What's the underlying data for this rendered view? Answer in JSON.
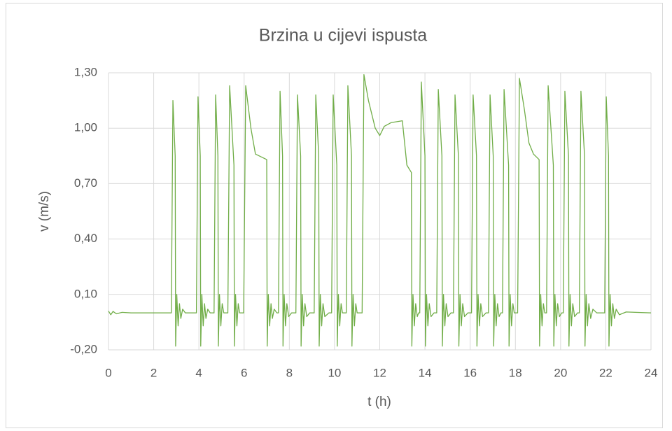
{
  "chart_data": {
    "type": "line",
    "title": "Brzina u cijevi ispusta",
    "x_label": "t  (h)",
    "y_label": "v  (m/s)",
    "x": [
      0,
      0.1,
      0.2,
      0.35,
      0.6,
      1,
      2.78,
      2.85,
      2.95,
      2.97,
      3.02,
      3.08,
      3.14,
      3.2,
      3.28,
      3.4,
      3.89,
      3.96,
      4.06,
      4.08,
      4.13,
      4.19,
      4.25,
      4.31,
      4.39,
      4.5,
      4.67,
      4.74,
      4.84,
      4.86,
      4.91,
      4.97,
      5.03,
      5.1,
      5.28,
      5.36,
      5.55,
      5.57,
      5.62,
      5.68,
      5.74,
      5.8,
      5.98,
      6.07,
      6.3,
      6.5,
      7.0,
      7.02,
      7.07,
      7.13,
      7.19,
      7.25,
      7.33,
      7.45,
      7.52,
      7.59,
      7.7,
      7.72,
      7.77,
      7.83,
      7.89,
      7.97,
      8.1,
      8.29,
      8.36,
      8.5,
      8.52,
      8.57,
      8.63,
      8.69,
      8.77,
      8.9,
      9.1,
      9.17,
      9.3,
      9.32,
      9.37,
      9.43,
      9.49,
      9.57,
      9.75,
      9.87,
      9.94,
      10.1,
      10.12,
      10.17,
      10.23,
      10.29,
      10.35,
      10.52,
      10.59,
      10.75,
      10.77,
      10.82,
      10.88,
      10.94,
      11.0,
      11.22,
      11.3,
      11.5,
      11.8,
      12.0,
      12.2,
      12.5,
      13.0,
      13.2,
      13.4,
      13.42,
      13.47,
      13.53,
      13.59,
      13.66,
      13.72,
      13.77,
      13.84,
      14.0,
      14.02,
      14.07,
      14.13,
      14.19,
      14.27,
      14.4,
      14.52,
      14.59,
      14.75,
      14.77,
      14.82,
      14.88,
      14.94,
      15.02,
      15.15,
      15.26,
      15.33,
      15.48,
      15.5,
      15.55,
      15.61,
      15.67,
      15.75,
      15.9,
      16.06,
      16.13,
      16.28,
      16.3,
      16.35,
      16.41,
      16.47,
      16.55,
      16.7,
      16.81,
      16.88,
      17.02,
      17.04,
      17.09,
      17.15,
      17.21,
      17.28,
      17.36,
      17.43,
      17.5,
      17.7,
      17.72,
      17.77,
      17.83,
      17.89,
      17.95,
      18.1,
      18.18,
      18.4,
      18.6,
      18.8,
      19.05,
      19.07,
      19.12,
      19.18,
      19.24,
      19.3,
      19.38,
      19.45,
      19.68,
      19.7,
      19.75,
      19.81,
      19.87,
      19.95,
      20.05,
      20.12,
      20.19,
      20.35,
      20.37,
      20.42,
      20.48,
      20.54,
      20.62,
      20.75,
      20.83,
      20.9,
      21.06,
      21.08,
      21.13,
      21.19,
      21.25,
      21.33,
      21.43,
      21.6,
      21.95,
      22.02,
      22.12,
      22.14,
      22.19,
      22.25,
      22.31,
      22.38,
      22.46,
      22.6,
      22.9,
      24
    ],
    "series": [
      {
        "color": "#70ad47",
        "values": [
          0.01,
          -0.01,
          0.008,
          -0.005,
          0.003,
          0,
          0,
          1.15,
          0.85,
          -0.18,
          0.1,
          -0.07,
          0.05,
          -0.03,
          0.02,
          0,
          0,
          1.17,
          0.85,
          -0.18,
          0.1,
          -0.07,
          0.05,
          -0.03,
          0.02,
          0,
          0,
          1.18,
          0.85,
          -0.18,
          0.1,
          -0.07,
          0.05,
          0,
          0,
          1.23,
          0.8,
          -0.18,
          0.1,
          -0.07,
          0.05,
          0,
          0,
          1.23,
          1.0,
          0.86,
          0.83,
          -0.18,
          0.1,
          -0.07,
          0.05,
          -0.03,
          0.02,
          0,
          0,
          1.2,
          0.85,
          -0.18,
          0.1,
          -0.07,
          0.05,
          -0.02,
          0,
          0,
          1.18,
          0.85,
          -0.18,
          0.1,
          -0.07,
          0.05,
          -0.02,
          0,
          0,
          1.18,
          0.85,
          -0.18,
          0.1,
          -0.07,
          0.05,
          -0.02,
          0,
          0,
          1.18,
          0.8,
          -0.18,
          0.1,
          -0.07,
          0.05,
          0,
          0,
          1.23,
          0.85,
          -0.18,
          0.1,
          -0.07,
          0.05,
          0,
          0,
          1.29,
          1.15,
          1.0,
          0.96,
          1.01,
          1.03,
          1.04,
          0.8,
          0.76,
          -0.18,
          0.1,
          -0.07,
          0.05,
          -0.02,
          0,
          0,
          1.25,
          0.85,
          -0.18,
          0.1,
          -0.07,
          0.05,
          -0.02,
          0,
          0,
          1.21,
          0.85,
          -0.18,
          0.1,
          -0.07,
          0.05,
          -0.02,
          0,
          0,
          1.18,
          0.85,
          -0.18,
          0.1,
          -0.07,
          0.05,
          -0.02,
          0,
          0,
          1.18,
          0.85,
          -0.18,
          0.1,
          -0.07,
          0.05,
          -0.02,
          0,
          0,
          1.18,
          0.85,
          -0.18,
          0.1,
          -0.07,
          0.05,
          -0.02,
          0,
          0,
          1.21,
          0.8,
          -0.18,
          0.1,
          -0.07,
          0.05,
          0,
          0,
          1.27,
          1.1,
          0.92,
          0.86,
          0.83,
          -0.18,
          0.1,
          -0.07,
          0.05,
          0,
          0,
          1.23,
          0.8,
          -0.18,
          0.1,
          -0.07,
          0.05,
          -0.02,
          0,
          0,
          1.2,
          0.85,
          -0.18,
          0.1,
          -0.07,
          0.05,
          -0.02,
          0,
          0,
          1.2,
          0.85,
          -0.18,
          0.1,
          -0.07,
          0.05,
          -0.03,
          0.02,
          0,
          0,
          1.17,
          0.85,
          -0.18,
          0.1,
          -0.07,
          0.05,
          -0.03,
          0.02,
          -0.01,
          0.005,
          0
        ]
      }
    ],
    "xlim": [
      0,
      24
    ],
    "xticks": [
      0,
      2,
      4,
      6,
      8,
      10,
      12,
      14,
      16,
      18,
      20,
      22,
      24
    ],
    "ylim": [
      -0.2,
      1.3
    ],
    "yticks": [
      {
        "value": -0.2,
        "label": "-0,20"
      },
      {
        "value": 0.1,
        "label": "0,10"
      },
      {
        "value": 0.4,
        "label": "0,40"
      },
      {
        "value": 0.7,
        "label": "0,70"
      },
      {
        "value": 1.0,
        "label": "1,00"
      },
      {
        "value": 1.3,
        "label": "1,30"
      }
    ],
    "grid": true
  }
}
